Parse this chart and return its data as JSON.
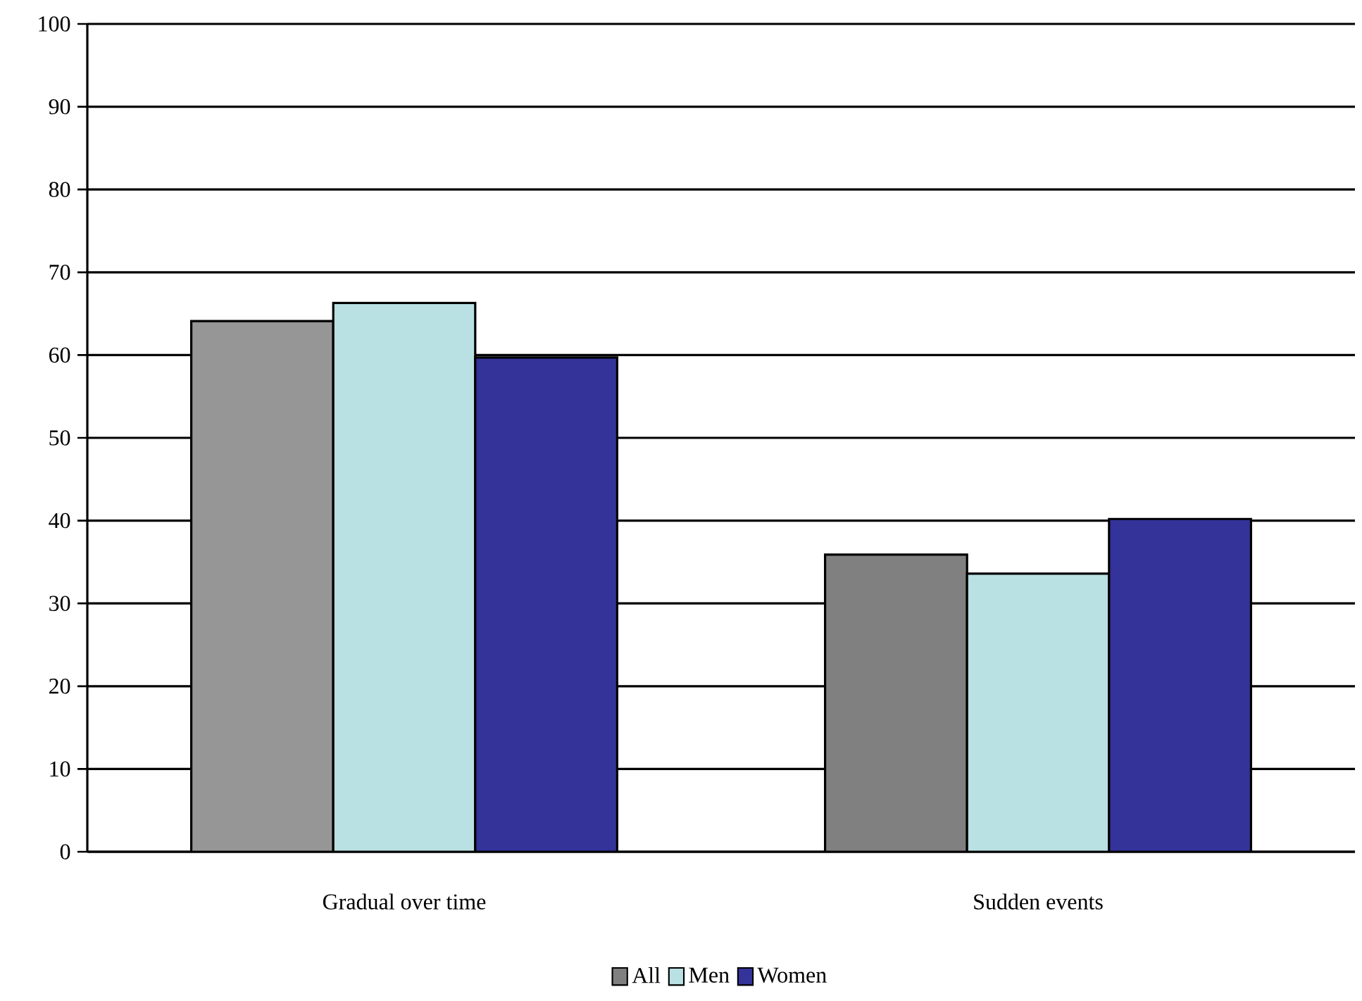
{
  "chart_data": {
    "type": "bar",
    "categories": [
      "Gradual over time",
      "Sudden events"
    ],
    "series": [
      {
        "name": "All",
        "color": "#808080",
        "colors": [
          "#969696",
          "#808080"
        ],
        "values": [
          64.1,
          35.9
        ]
      },
      {
        "name": "Men",
        "color": "#b9e0e3",
        "values": [
          66.3,
          33.6
        ]
      },
      {
        "name": "Women",
        "color": "#333399",
        "values": [
          59.7,
          40.2
        ]
      }
    ],
    "ylim": [
      0,
      100
    ],
    "yticks": [
      0,
      10,
      20,
      30,
      40,
      50,
      60,
      70,
      80,
      90,
      100
    ],
    "grid": "y",
    "legend": "bottom"
  }
}
